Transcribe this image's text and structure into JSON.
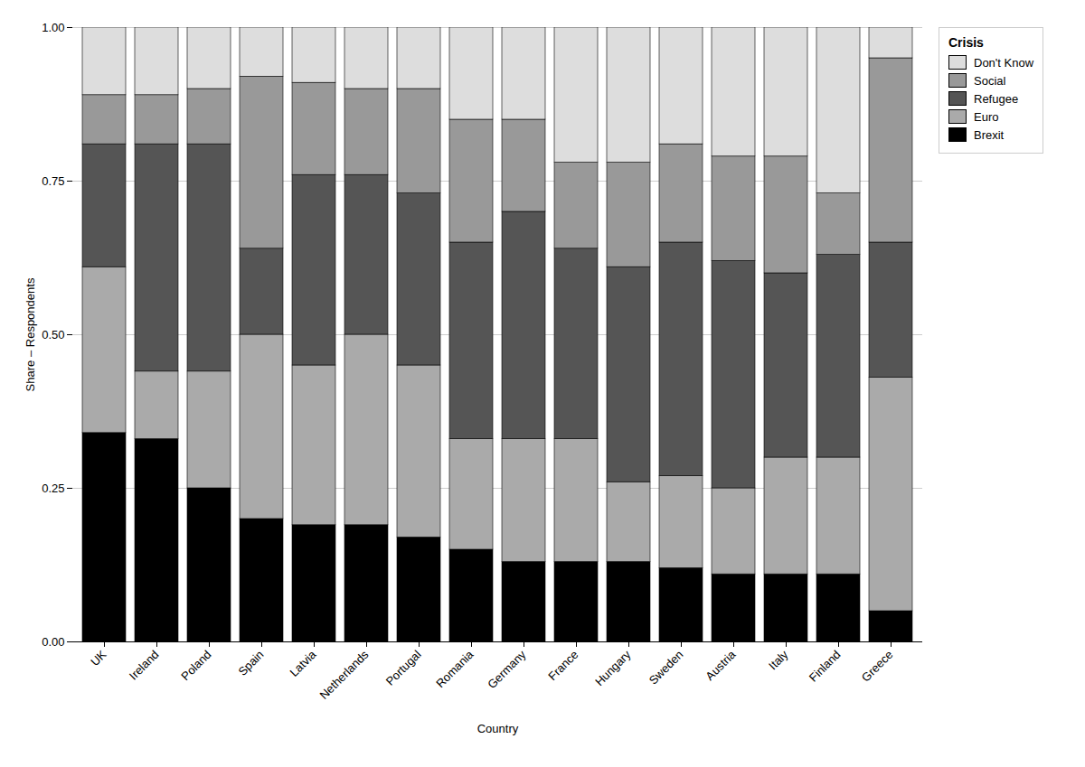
{
  "chart_data": {
    "type": "bar",
    "stacked": true,
    "xlabel": "Country",
    "ylabel": "Share – Respondents",
    "legend_title": "Crisis",
    "legend": "upper right",
    "grid": true,
    "categories": [
      "UK",
      "Ireland",
      "Poland",
      "Spain",
      "Latvia",
      "Netherlands",
      "Portugal",
      "Romania",
      "Germany",
      "France",
      "Hungary",
      "Sweden",
      "Austria",
      "Italy",
      "Finland",
      "Greece"
    ],
    "series": [
      {
        "name": "Brexit",
        "color": "#000000",
        "values": [
          0.34,
          0.33,
          0.25,
          0.2,
          0.19,
          0.19,
          0.17,
          0.15,
          0.13,
          0.13,
          0.13,
          0.12,
          0.11,
          0.11,
          0.11,
          0.05
        ]
      },
      {
        "name": "Euro",
        "color": "#aaaaaa",
        "values": [
          0.27,
          0.11,
          0.19,
          0.3,
          0.26,
          0.31,
          0.28,
          0.18,
          0.2,
          0.2,
          0.13,
          0.15,
          0.14,
          0.19,
          0.19,
          0.38
        ]
      },
      {
        "name": "Refugee",
        "color": "#555555",
        "values": [
          0.2,
          0.37,
          0.37,
          0.14,
          0.31,
          0.26,
          0.28,
          0.32,
          0.37,
          0.31,
          0.35,
          0.38,
          0.37,
          0.3,
          0.33,
          0.22
        ]
      },
      {
        "name": "Social",
        "color": "#999999",
        "values": [
          0.08,
          0.08,
          0.09,
          0.28,
          0.15,
          0.14,
          0.17,
          0.2,
          0.15,
          0.14,
          0.17,
          0.16,
          0.17,
          0.19,
          0.1,
          0.3
        ]
      },
      {
        "name": "Don't Know",
        "color": "#dddddd",
        "values": [
          0.11,
          0.11,
          0.1,
          0.08,
          0.09,
          0.1,
          0.1,
          0.15,
          0.15,
          0.22,
          0.22,
          0.19,
          0.21,
          0.21,
          0.27,
          0.05
        ]
      }
    ],
    "ylim": [
      0.0,
      1.0
    ],
    "yticks": [
      {
        "value": 0.0,
        "label": "0.00"
      },
      {
        "value": 0.25,
        "label": "0.25"
      },
      {
        "value": 0.5,
        "label": "0.50"
      },
      {
        "value": 0.75,
        "label": "0.75"
      },
      {
        "value": 1.0,
        "label": "1.00"
      }
    ]
  }
}
